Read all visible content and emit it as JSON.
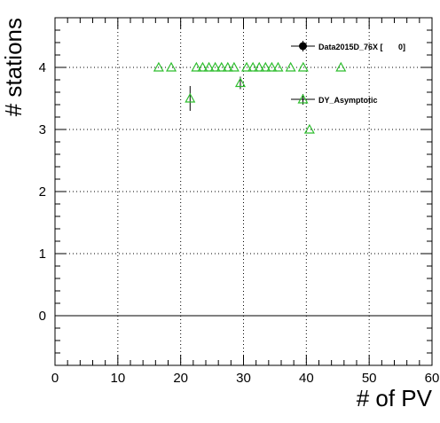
{
  "chart_data": {
    "type": "scatter",
    "xlabel": "# of PV",
    "ylabel": "# stations",
    "xlim": [
      0,
      60
    ],
    "ylim": [
      -0.8,
      4.8
    ],
    "xticks": [
      "0",
      "10",
      "20",
      "30",
      "40",
      "50",
      "60"
    ],
    "yticks": [
      "0",
      "1",
      "2",
      "3",
      "4"
    ],
    "grid": true,
    "legend_position": "top-right",
    "zero_line_y": 0,
    "series": [
      {
        "name": "Data2015D_76X [       0]",
        "marker": "filled-circle",
        "color": "#000000",
        "points": []
      },
      {
        "name": "DY_Asymptotic",
        "marker": "open-triangle",
        "color": "#2dbd2d",
        "points": [
          {
            "x": 16.5,
            "y": 4.0,
            "err": 0
          },
          {
            "x": 18.5,
            "y": 4.0,
            "err": 0
          },
          {
            "x": 21.5,
            "y": 3.5,
            "err": 0.2
          },
          {
            "x": 22.5,
            "y": 4.0,
            "err": 0
          },
          {
            "x": 23.5,
            "y": 4.0,
            "err": 0
          },
          {
            "x": 24.5,
            "y": 4.0,
            "err": 0
          },
          {
            "x": 25.5,
            "y": 4.0,
            "err": 0
          },
          {
            "x": 26.5,
            "y": 4.0,
            "err": 0
          },
          {
            "x": 27.5,
            "y": 4.0,
            "err": 0
          },
          {
            "x": 28.5,
            "y": 4.0,
            "err": 0
          },
          {
            "x": 29.5,
            "y": 3.75,
            "err": 0.1
          },
          {
            "x": 30.5,
            "y": 4.0,
            "err": 0
          },
          {
            "x": 31.5,
            "y": 4.0,
            "err": 0
          },
          {
            "x": 32.5,
            "y": 4.0,
            "err": 0
          },
          {
            "x": 33.5,
            "y": 4.0,
            "err": 0
          },
          {
            "x": 34.5,
            "y": 4.0,
            "err": 0
          },
          {
            "x": 35.5,
            "y": 4.0,
            "err": 0
          },
          {
            "x": 37.5,
            "y": 4.0,
            "err": 0
          },
          {
            "x": 39.5,
            "y": 4.0,
            "err": 0
          },
          {
            "x": 40.5,
            "y": 3.0,
            "err": 0
          },
          {
            "x": 45.5,
            "y": 4.0,
            "err": 0
          }
        ]
      }
    ]
  }
}
